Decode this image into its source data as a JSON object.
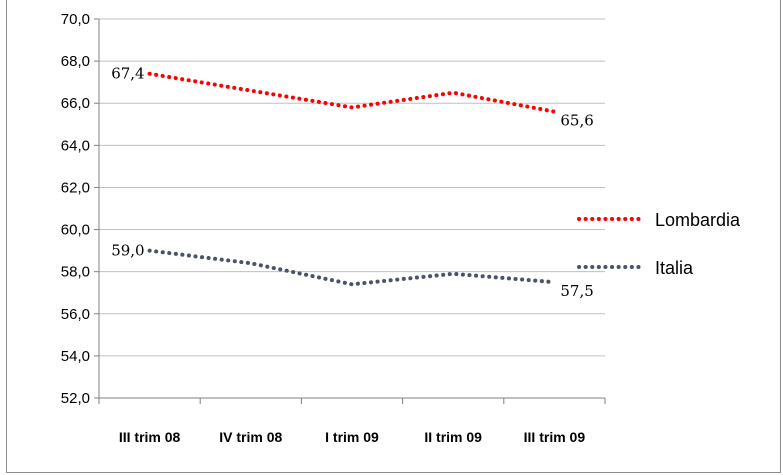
{
  "chart_data": {
    "type": "line",
    "title": "",
    "xlabel": "",
    "ylabel": "",
    "categories": [
      "III trim 08",
      "IV trim 08",
      "I trim 09",
      "II trim 09",
      "III trim 09"
    ],
    "ylim": [
      52.0,
      70.0
    ],
    "ytick_step": 2.0,
    "yticks": [
      "52,0",
      "54,0",
      "56,0",
      "58,0",
      "60,0",
      "62,0",
      "64,0",
      "66,0",
      "68,0",
      "70,0"
    ],
    "grid": true,
    "legend_position": "right",
    "series": [
      {
        "name": "Lombardia",
        "color": "#ff0000",
        "values": [
          67.4,
          66.6,
          65.8,
          66.5,
          65.6
        ],
        "labels": [
          {
            "index": 0,
            "text": "67,4"
          },
          {
            "index": 4,
            "text": "65,6"
          }
        ]
      },
      {
        "name": "Italia",
        "color": "#4b5368",
        "values": [
          59.0,
          58.4,
          57.4,
          57.9,
          57.5
        ],
        "labels": [
          {
            "index": 0,
            "text": "59,0"
          },
          {
            "index": 4,
            "text": "57,5"
          }
        ]
      }
    ]
  }
}
